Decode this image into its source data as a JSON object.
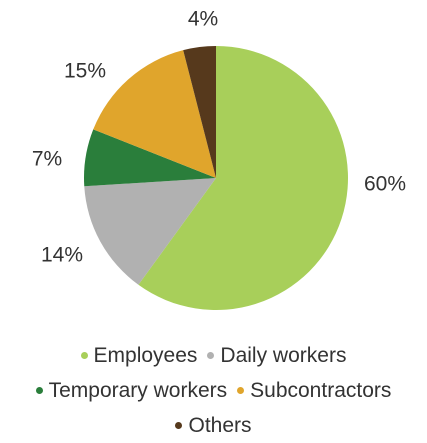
{
  "chart_data": {
    "type": "pie",
    "categories": [
      "Employees",
      "Daily workers",
      "Temporary workers",
      "Subcontractors",
      "Others"
    ],
    "values": [
      60,
      14,
      7,
      15,
      4
    ],
    "value_labels": [
      "60%",
      "14%",
      "7%",
      "15%",
      "4%"
    ],
    "colors": [
      "#a8cf5a",
      "#b1b1b1",
      "#2a7e3b",
      "#e0a52c",
      "#56391c"
    ]
  }
}
